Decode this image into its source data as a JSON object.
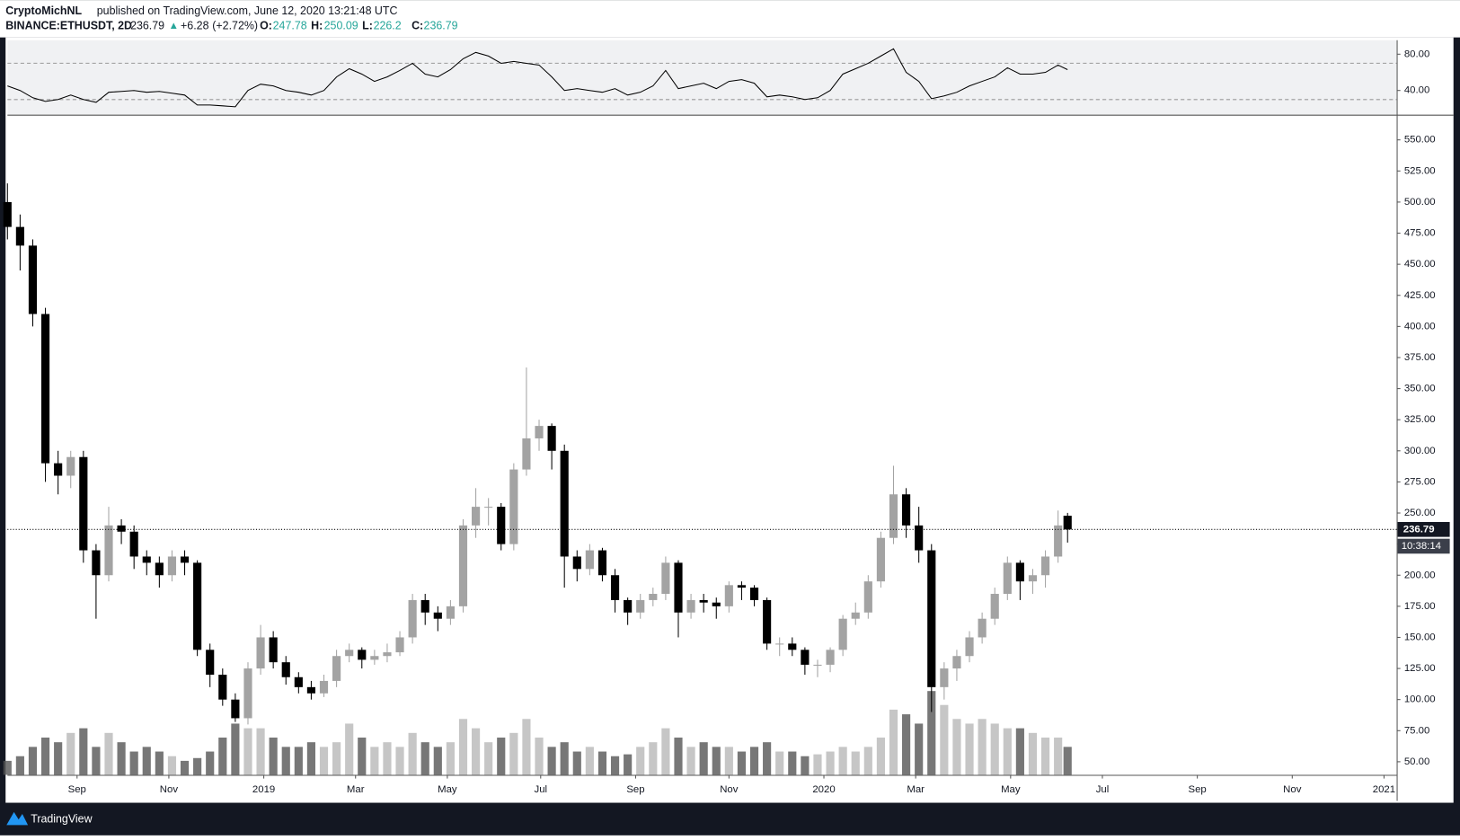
{
  "header": {
    "author": "CryptoMichNL",
    "published": "published on TradingView.com, June 12, 2020 13:21:48 UTC",
    "symbol": "BINANCE:ETHUSDT, 2D",
    "change": "+6.28",
    "change_pct": "(+2.72%)",
    "open_label": "O:",
    "high_label": "H:",
    "low_label": "L:",
    "close_label": "C:",
    "countdown": "10:38:14"
  },
  "footer": {
    "brand": "TradingView"
  },
  "chart_data": {
    "type": "candlestick",
    "x": [
      0,
      4,
      8,
      12,
      16,
      20,
      24,
      28,
      32,
      36,
      40,
      44,
      48,
      52,
      56,
      60,
      64,
      68,
      72,
      76,
      80,
      84,
      88,
      92,
      96,
      100,
      104,
      108,
      112,
      116,
      120,
      124,
      128,
      132,
      136,
      140,
      144,
      148,
      152,
      156,
      160,
      164,
      168,
      172,
      176,
      180,
      184,
      188,
      192,
      196,
      200,
      204,
      208,
      212,
      216,
      220,
      224,
      228,
      232,
      236,
      240,
      244,
      248,
      252,
      256,
      260,
      264,
      268,
      272,
      276,
      280,
      284,
      288,
      292,
      296,
      300,
      304,
      308,
      312,
      316,
      320,
      324,
      328,
      332,
      335
    ],
    "open": [
      500,
      480,
      465,
      410,
      290,
      280,
      295,
      220,
      200,
      240,
      235,
      215,
      210,
      200,
      215,
      210,
      140,
      120,
      100,
      85,
      125,
      150,
      130,
      118,
      110,
      105,
      115,
      135,
      140,
      132,
      135,
      138,
      150,
      180,
      170,
      165,
      175,
      240,
      255,
      255,
      225,
      285,
      310,
      320,
      300,
      215,
      205,
      220,
      200,
      180,
      170,
      180,
      185,
      210,
      170,
      180,
      178,
      175,
      192,
      190,
      180,
      145,
      145,
      140,
      128,
      128,
      140,
      165,
      170,
      195,
      230,
      265,
      240,
      220,
      110,
      125,
      135,
      150,
      165,
      185,
      210,
      195,
      200,
      215,
      247.78
    ],
    "high": [
      515,
      490,
      470,
      415,
      300,
      300,
      300,
      225,
      255,
      245,
      240,
      220,
      215,
      220,
      220,
      212,
      145,
      125,
      105,
      130,
      160,
      155,
      135,
      122,
      115,
      120,
      140,
      145,
      142,
      140,
      145,
      155,
      185,
      185,
      175,
      180,
      245,
      270,
      262,
      258,
      290,
      367,
      325,
      322,
      305,
      220,
      225,
      222,
      205,
      182,
      185,
      190,
      215,
      212,
      185,
      185,
      182,
      195,
      195,
      192,
      182,
      150,
      150,
      142,
      132,
      142,
      168,
      178,
      200,
      235,
      288,
      270,
      255,
      225,
      130,
      140,
      155,
      170,
      190,
      215,
      212,
      205,
      220,
      252,
      250.09
    ],
    "low": [
      470,
      445,
      400,
      275,
      265,
      270,
      210,
      165,
      195,
      225,
      205,
      200,
      190,
      195,
      200,
      135,
      110,
      95,
      82,
      80,
      120,
      125,
      112,
      105,
      100,
      102,
      110,
      130,
      125,
      128,
      130,
      135,
      145,
      160,
      155,
      160,
      170,
      230,
      240,
      220,
      220,
      280,
      300,
      285,
      190,
      195,
      200,
      195,
      170,
      160,
      165,
      175,
      180,
      150,
      165,
      170,
      165,
      170,
      180,
      175,
      140,
      135,
      135,
      120,
      118,
      122,
      135,
      160,
      165,
      190,
      225,
      230,
      210,
      90,
      100,
      115,
      130,
      145,
      160,
      180,
      180,
      185,
      190,
      210,
      226.2
    ],
    "close": [
      480,
      465,
      410,
      290,
      280,
      295,
      220,
      200,
      240,
      235,
      215,
      210,
      200,
      215,
      210,
      140,
      120,
      100,
      85,
      125,
      150,
      130,
      118,
      110,
      105,
      115,
      135,
      140,
      132,
      135,
      138,
      150,
      180,
      170,
      165,
      175,
      240,
      255,
      255,
      225,
      285,
      310,
      320,
      300,
      215,
      205,
      220,
      200,
      180,
      170,
      180,
      185,
      210,
      170,
      180,
      178,
      175,
      192,
      190,
      180,
      145,
      145,
      140,
      128,
      128,
      140,
      165,
      170,
      195,
      230,
      265,
      240,
      220,
      110,
      125,
      135,
      150,
      165,
      185,
      210,
      195,
      200,
      215,
      240,
      236.79
    ],
    "up_color": "#a3a3a3",
    "down_color": "#000000",
    "xlim": [
      0,
      439
    ],
    "xticks": [
      {
        "value": 22,
        "label": "Sep"
      },
      {
        "value": 51,
        "label": "Nov"
      },
      {
        "value": 81,
        "label": "2019"
      },
      {
        "value": 110,
        "label": "Mar"
      },
      {
        "value": 139,
        "label": "May"
      },
      {
        "value": 168.5,
        "label": "Jul"
      },
      {
        "value": 198.5,
        "label": "Sep"
      },
      {
        "value": 228,
        "label": "Nov"
      },
      {
        "value": 258,
        "label": "2020"
      },
      {
        "value": 287,
        "label": "Mar"
      },
      {
        "value": 317,
        "label": "May"
      },
      {
        "value": 346,
        "label": "Jul"
      },
      {
        "value": 376,
        "label": "Sep"
      },
      {
        "value": 406,
        "label": "Nov"
      },
      {
        "value": 435,
        "label": "2021"
      }
    ],
    "ylim": [
      39.5,
      569.5
    ],
    "yticks": [
      {
        "value": 50,
        "label": "50.00"
      },
      {
        "value": 75,
        "label": "75.00"
      },
      {
        "value": 100,
        "label": "100.00"
      },
      {
        "value": 125,
        "label": "125.00"
      },
      {
        "value": 150,
        "label": "150.00"
      },
      {
        "value": 175,
        "label": "175.00"
      },
      {
        "value": 200,
        "label": "200.00"
      },
      {
        "value": 225,
        "label": "225.00"
      },
      {
        "value": 250,
        "label": "250.00"
      },
      {
        "value": 275,
        "label": "275.00"
      },
      {
        "value": 300,
        "label": "300.00"
      },
      {
        "value": 325,
        "label": "325.00"
      },
      {
        "value": 350,
        "label": "350.00"
      },
      {
        "value": 375,
        "label": "375.00"
      },
      {
        "value": 400,
        "label": "400.00"
      },
      {
        "value": 425,
        "label": "425.00"
      },
      {
        "value": 450,
        "label": "450.00"
      },
      {
        "value": 475,
        "label": "475.00"
      },
      {
        "value": 500,
        "label": "500.00"
      },
      {
        "value": 525,
        "label": "525.00"
      },
      {
        "value": 550,
        "label": "550.00"
      }
    ],
    "volume": {
      "values": [
        15,
        20,
        30,
        40,
        35,
        45,
        50,
        30,
        45,
        35,
        25,
        30,
        25,
        20,
        15,
        18,
        25,
        40,
        55,
        50,
        50,
        40,
        30,
        30,
        35,
        30,
        35,
        55,
        40,
        30,
        35,
        30,
        45,
        35,
        30,
        35,
        60,
        50,
        35,
        40,
        45,
        60,
        40,
        30,
        35,
        25,
        30,
        25,
        20,
        22,
        30,
        35,
        50,
        40,
        30,
        35,
        30,
        30,
        25,
        30,
        35,
        25,
        25,
        20,
        22,
        25,
        30,
        25,
        30,
        40,
        70,
        65,
        55,
        90,
        75,
        60,
        55,
        60,
        55,
        50,
        50,
        45,
        40,
        40,
        30
      ],
      "ylim": [
        0,
        100
      ],
      "up_color": "#b8b8b8",
      "down_color": "#555555"
    },
    "rsi": {
      "values": [
        45,
        40,
        32,
        28,
        30,
        35,
        30,
        27,
        38,
        39,
        40,
        38,
        39,
        37,
        35,
        24,
        24,
        23,
        22,
        40,
        47,
        45,
        40,
        38,
        35,
        40,
        55,
        64,
        58,
        50,
        55,
        62,
        70,
        58,
        55,
        63,
        75,
        82,
        78,
        70,
        72,
        70,
        68,
        55,
        40,
        42,
        40,
        38,
        42,
        35,
        38,
        45,
        62,
        42,
        45,
        48,
        42,
        50,
        52,
        48,
        33,
        35,
        33,
        30,
        32,
        40,
        58,
        64,
        70,
        78,
        86,
        60,
        50,
        31,
        34,
        38,
        45,
        50,
        55,
        65,
        58,
        58,
        60,
        68,
        63
      ],
      "ylim": [
        13.3,
        95.4
      ],
      "yticks": [
        {
          "value": 40,
          "label": "40.00"
        },
        {
          "value": 80,
          "label": "80.00"
        }
      ],
      "bands": [
        30,
        70
      ],
      "color": "#000000"
    }
  }
}
